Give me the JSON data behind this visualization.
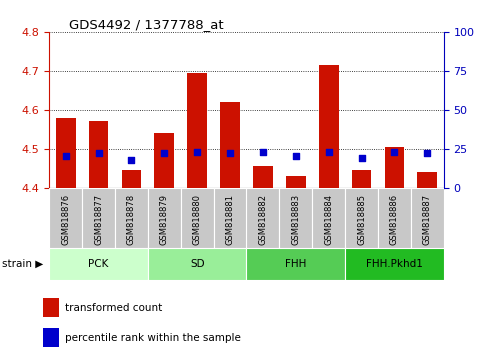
{
  "title": "GDS4492 / 1377788_at",
  "samples": [
    "GSM818876",
    "GSM818877",
    "GSM818878",
    "GSM818879",
    "GSM818880",
    "GSM818881",
    "GSM818882",
    "GSM818883",
    "GSM818884",
    "GSM818885",
    "GSM818886",
    "GSM818887"
  ],
  "red_values": [
    4.58,
    4.57,
    4.445,
    4.54,
    4.695,
    4.62,
    4.455,
    4.43,
    4.715,
    4.445,
    4.505,
    4.44
  ],
  "blue_values_pct": [
    20,
    22,
    18,
    22,
    23,
    22,
    23,
    20,
    23,
    19,
    23,
    22
  ],
  "ylim_left": [
    4.4,
    4.8
  ],
  "ylim_right": [
    0,
    100
  ],
  "yticks_left": [
    4.4,
    4.5,
    4.6,
    4.7,
    4.8
  ],
  "yticks_right": [
    0,
    25,
    50,
    75,
    100
  ],
  "groups": [
    {
      "label": "PCK",
      "start": 0,
      "end": 3
    },
    {
      "label": "SD",
      "start": 3,
      "end": 6
    },
    {
      "label": "FHH",
      "start": 6,
      "end": 9
    },
    {
      "label": "FHH.Pkhd1",
      "start": 9,
      "end": 12
    }
  ],
  "group_colors": [
    "#ccffcc",
    "#99ee99",
    "#55cc55",
    "#22bb22"
  ],
  "bar_color": "#cc1100",
  "dot_color": "#0000cc",
  "base_value": 4.4,
  "tick_bg": "#c8c8c8",
  "left_axis_color": "#cc1100",
  "right_axis_color": "#0000bb",
  "legend_red": "transformed count",
  "legend_blue": "percentile rank within the sample",
  "strain_label": "strain"
}
